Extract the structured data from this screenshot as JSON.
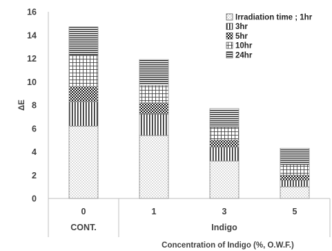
{
  "chart_data": {
    "type": "bar",
    "stacked": true,
    "categories": [
      "0",
      "1",
      "3",
      "5"
    ],
    "category_groups": [
      {
        "label": "CONT.",
        "categories": [
          "0"
        ]
      },
      {
        "label": "Indigo",
        "categories": [
          "1",
          "3",
          "5"
        ]
      }
    ],
    "series": [
      {
        "name": "Irradiation time ; 1hr",
        "values": [
          6.2,
          5.4,
          3.2,
          1.0
        ]
      },
      {
        "name": "3hr",
        "values": [
          2.1,
          1.8,
          1.2,
          0.55
        ]
      },
      {
        "name": "5hr",
        "values": [
          1.3,
          1.0,
          0.6,
          0.45
        ]
      },
      {
        "name": "10hr",
        "values": [
          2.7,
          1.5,
          1.1,
          0.9
        ]
      },
      {
        "name": "24hr",
        "values": [
          2.4,
          2.2,
          1.6,
          1.4
        ]
      }
    ],
    "xlabel": "Concentration of Indigo (%, O.W.F.)",
    "ylabel": "ΔE",
    "ylim": [
      0,
      16
    ],
    "yticks": [
      "0",
      "2",
      "4",
      "6",
      "8",
      "10",
      "12",
      "14",
      "16"
    ],
    "grid": false,
    "legend_position": "top-right",
    "patterns": [
      "dots",
      "vertical-stripes",
      "checker",
      "grid",
      "horizontal-stripes"
    ]
  }
}
